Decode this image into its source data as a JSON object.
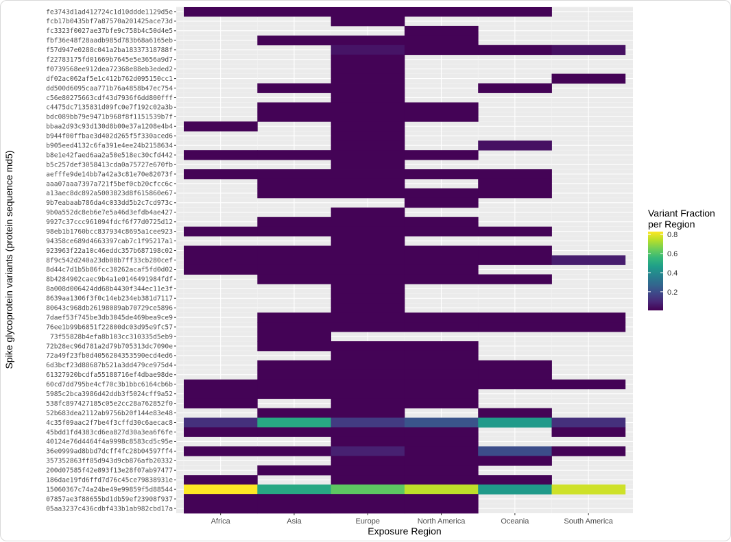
{
  "chart_data": {
    "type": "heatmap",
    "xlabel": "Exposure Region",
    "ylabel": "Spike glycoprotein variants (protein sequence md5)",
    "categories": [
      "Africa",
      "Asia",
      "Europe",
      "North America",
      "Oceania",
      "South America"
    ],
    "legend": {
      "title_line1": "Variant Fraction",
      "title_line2": "per Region",
      "position": "right",
      "ticks": [
        "0.2",
        "0.4",
        "0.6",
        "0.8"
      ],
      "range": [
        0.005,
        0.83
      ],
      "colormap": "viridis"
    },
    "missing_color": "#ebebeb",
    "rows": [
      {
        "id": "fe3743d1ad412724c1d10ddde1129d5e",
        "values": [
          0.01,
          0.01,
          0.01,
          0.01,
          0.01,
          null
        ]
      },
      {
        "id": "fcb17b0435bf7a87570a201425ace73d",
        "values": [
          null,
          null,
          0.01,
          null,
          null,
          null
        ]
      },
      {
        "id": "fc3323f0027ae37bfe9c758b4c50d4e5",
        "values": [
          null,
          null,
          null,
          0.01,
          null,
          null
        ]
      },
      {
        "id": "fbf36e48f28aadb985d783b68a6165eb",
        "values": [
          null,
          0.01,
          0.01,
          0.01,
          null,
          null
        ]
      },
      {
        "id": "f57d947e0288c041a2ba18337318788f",
        "values": [
          null,
          null,
          0.05,
          0.01,
          0.01,
          0.04
        ]
      },
      {
        "id": "f22783175fd01669b7645e5e3656a9d7",
        "values": [
          null,
          null,
          0.01,
          null,
          null,
          null
        ]
      },
      {
        "id": "f0739568ee912dea72368e88eb3eded2",
        "values": [
          null,
          null,
          0.01,
          null,
          null,
          null
        ]
      },
      {
        "id": "df02ac062af5e1c412b762d095150cc1",
        "values": [
          null,
          null,
          0.01,
          null,
          null,
          0.01
        ]
      },
      {
        "id": "dd500d6095caa771b76a4858b47ec754",
        "values": [
          null,
          0.01,
          0.01,
          null,
          0.01,
          null
        ]
      },
      {
        "id": "c56e80275663cdf43d7936f6dd800fff",
        "values": [
          null,
          null,
          0.01,
          null,
          null,
          null
        ]
      },
      {
        "id": "c4475dc7135831d09fc0e7f192c02a3b",
        "values": [
          null,
          0.01,
          0.01,
          0.01,
          null,
          null
        ]
      },
      {
        "id": "bdc089bb79e9471b968f8f1151539b7f",
        "values": [
          null,
          0.01,
          0.01,
          0.01,
          null,
          null
        ]
      },
      {
        "id": "bbaa2d93c93d130d8b00e37a1208e4b4",
        "values": [
          0.01,
          null,
          0.01,
          null,
          null,
          null
        ]
      },
      {
        "id": "b944f00ffbae3d402d265f5f330aced6",
        "values": [
          null,
          null,
          0.01,
          null,
          null,
          null
        ]
      },
      {
        "id": "b905eed4132c6fa391e4ee24b2158634",
        "values": [
          null,
          null,
          0.01,
          null,
          0.04,
          null
        ]
      },
      {
        "id": "b8e1e42faed6aa2a50e518ec30cfd442",
        "values": [
          0.01,
          0.01,
          0.01,
          0.01,
          null,
          null
        ]
      },
      {
        "id": "b5c257def3058413cda0a75727e670fb",
        "values": [
          null,
          null,
          0.01,
          null,
          null,
          null
        ]
      },
      {
        "id": "aefffe9de14bb7a42a3c81e70e82073f",
        "values": [
          0.01,
          0.01,
          0.01,
          0.01,
          0.01,
          null
        ]
      },
      {
        "id": "aaa07aaa7397a721f5bef0cb20cfcc6c",
        "values": [
          null,
          0.01,
          0.01,
          null,
          0.01,
          null
        ]
      },
      {
        "id": "a13aec8dc892a5003823d8f615860e67",
        "values": [
          null,
          0.01,
          0.01,
          0.01,
          0.01,
          null
        ]
      },
      {
        "id": "9b7eabaab786da4c033dd5b2c7cd973c",
        "values": [
          null,
          null,
          null,
          0.01,
          null,
          null
        ]
      },
      {
        "id": "9b0a552dc8eb6e7e5a46d3efdb4ae427",
        "values": [
          null,
          null,
          0.01,
          null,
          null,
          null
        ]
      },
      {
        "id": "9927c37ccc961094fdcf6f77d0725d12",
        "values": [
          null,
          0.01,
          0.01,
          0.01,
          null,
          null
        ]
      },
      {
        "id": "98eb1b1760bcc837934c8695a1cee923",
        "values": [
          0.01,
          0.01,
          0.01,
          0.01,
          0.01,
          null
        ]
      },
      {
        "id": "94358ce689d4663397cab7c1f95217a1",
        "values": [
          null,
          null,
          0.01,
          null,
          null,
          null
        ]
      },
      {
        "id": "923963f22a10c46eddc357b687198c02",
        "values": [
          0.01,
          0.01,
          0.01,
          0.01,
          0.01,
          null
        ]
      },
      {
        "id": "8f9c542d240a23db08b7ff33cb280cef",
        "values": [
          0.01,
          0.01,
          0.01,
          0.01,
          0.01,
          0.07
        ]
      },
      {
        "id": "8d44c7d1b5b86fcc30262acaf5fd0d02",
        "values": [
          0.01,
          0.01,
          0.01,
          0.01,
          null,
          null
        ]
      },
      {
        "id": "8b4284902caec9b4a1e0146491984fdf",
        "values": [
          null,
          0.01,
          0.01,
          0.01,
          0.01,
          null
        ]
      },
      {
        "id": "8a008d006424dd68b4430f344ec11e3f",
        "values": [
          null,
          null,
          0.01,
          null,
          null,
          null
        ]
      },
      {
        "id": "8639aa1306f3f0c14eb234eb381d7117",
        "values": [
          null,
          null,
          0.01,
          null,
          null,
          null
        ]
      },
      {
        "id": "80643c968db26198089ab70729ce5896",
        "values": [
          null,
          null,
          0.01,
          null,
          null,
          null
        ]
      },
      {
        "id": "7daef53f745be3db3045de469bea9ce9",
        "values": [
          null,
          0.01,
          0.01,
          0.01,
          0.01,
          0.01
        ]
      },
      {
        "id": "76ee1b99b6851f22800dc03d95e9fc57",
        "values": [
          null,
          0.01,
          0.01,
          0.01,
          0.01,
          0.01
        ]
      },
      {
        "id": "73f55828b4efa8b103cc310335d5eb9",
        "values": [
          null,
          0.01,
          null,
          null,
          null,
          null
        ]
      },
      {
        "id": "72b28ec96d781a2d79b705313dc7090e",
        "values": [
          null,
          0.01,
          0.01,
          0.01,
          null,
          null
        ]
      },
      {
        "id": "72a49f23fb0d4056204353590ecd4ed6",
        "values": [
          null,
          null,
          0.01,
          0.01,
          null,
          null
        ]
      },
      {
        "id": "6d3bcf23d88687b521a3dd479ce975d4",
        "values": [
          null,
          0.01,
          0.01,
          0.01,
          0.01,
          null
        ]
      },
      {
        "id": "61327920bcdfa55188716ef4dbae98de",
        "values": [
          null,
          0.01,
          0.01,
          0.01,
          0.01,
          null
        ]
      },
      {
        "id": "60cd7dd795be4cf70c3b1bbc6164cb6b",
        "values": [
          0.01,
          0.01,
          0.01,
          0.01,
          0.01,
          0.01
        ]
      },
      {
        "id": "5985c2bca3986d42ddb3f5024cff9a52",
        "values": [
          0.01,
          0.01,
          0.01,
          0.01,
          null,
          null
        ]
      },
      {
        "id": "538fc897427185c05e2cc28a762852f0",
        "values": [
          0.01,
          null,
          0.01,
          0.01,
          null,
          null
        ]
      },
      {
        "id": "52b683dea2112ab9756b20f144e83e48",
        "values": [
          null,
          0.01,
          0.01,
          null,
          0.01,
          null
        ]
      },
      {
        "id": "4c35f09aac2f7be4f3cffd30c6aecac8",
        "values": [
          0.12,
          0.5,
          0.15,
          0.22,
          0.45,
          0.12
        ]
      },
      {
        "id": "45bdd1fd4383cd6ea827d30a3ea6f6fe",
        "values": [
          0.01,
          0.01,
          0.01,
          0.01,
          null,
          0.01
        ]
      },
      {
        "id": "40124e76d4464f4a9998c8583cd5c95e",
        "values": [
          null,
          null,
          0.01,
          0.01,
          null,
          null
        ]
      },
      {
        "id": "36e0999ad8bbd7dcff4fc28b04597ff4",
        "values": [
          0.01,
          0.01,
          0.08,
          0.01,
          0.2,
          0.01
        ]
      },
      {
        "id": "357352863ff85d943d9cb876afb20332",
        "values": [
          null,
          null,
          0.01,
          0.01,
          0.01,
          null
        ]
      },
      {
        "id": "200d07585f42e893f13e28f07ab97477",
        "values": [
          null,
          0.01,
          0.01,
          0.01,
          null,
          null
        ]
      },
      {
        "id": "186dae19fd6ffd7d76c45ce79838931e",
        "values": [
          0.01,
          null,
          0.01,
          0.01,
          0.01,
          null
        ]
      },
      {
        "id": "15060367c74a24be49e99859f5d88544",
        "values": [
          0.83,
          0.5,
          0.62,
          0.75,
          0.45,
          0.77
        ]
      },
      {
        "id": "07857ae3f88655bd1db59ef23908f937",
        "values": [
          0.01,
          0.01,
          0.01,
          0.01,
          null,
          null
        ]
      },
      {
        "id": "05aa3237c436cdbf433b1ab982cbd17a",
        "values": [
          0.01,
          0.01,
          0.01,
          0.01,
          null,
          null
        ]
      }
    ]
  }
}
